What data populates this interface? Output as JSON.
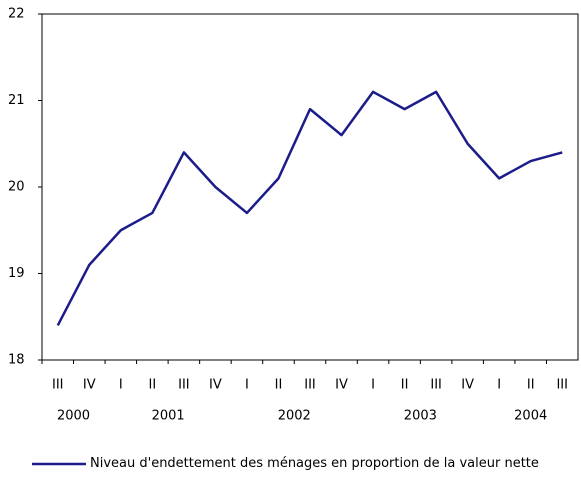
{
  "chart_data": {
    "type": "line",
    "categories": [
      "III",
      "IV",
      "I",
      "II",
      "III",
      "IV",
      "I",
      "II",
      "III",
      "IV",
      "I",
      "II",
      "III",
      "IV",
      "I",
      "II",
      "III"
    ],
    "category_groups": [
      {
        "label": "2000",
        "count": 2
      },
      {
        "label": "2001",
        "count": 4
      },
      {
        "label": "2002",
        "count": 4
      },
      {
        "label": "2003",
        "count": 4
      },
      {
        "label": "2004",
        "count": 3
      }
    ],
    "series": [
      {
        "name": "Niveau d'endettement des ménages en proportion de la valeur nette",
        "color": "#1c1c8a",
        "values": [
          18.4,
          19.1,
          19.5,
          19.7,
          20.4,
          20.0,
          19.7,
          20.1,
          20.9,
          20.6,
          21.1,
          20.9,
          21.1,
          20.5,
          20.1,
          20.3,
          20.4
        ]
      }
    ],
    "ylim": [
      18,
      22
    ],
    "yticks": [
      18,
      19,
      20,
      21,
      22
    ],
    "grid": false
  }
}
